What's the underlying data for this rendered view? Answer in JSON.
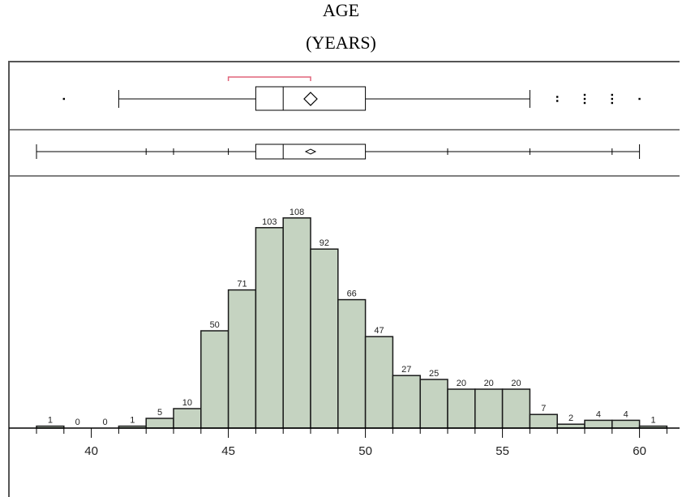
{
  "chart_data": {
    "type": "bar",
    "title": "AGE",
    "subtitle": "(YEARS)",
    "bins": [
      {
        "x0": 38,
        "x1": 39,
        "count": 1
      },
      {
        "x0": 39,
        "x1": 40,
        "count": 0
      },
      {
        "x0": 40,
        "x1": 41,
        "count": 0
      },
      {
        "x0": 41,
        "x1": 42,
        "count": 1
      },
      {
        "x0": 42,
        "x1": 43,
        "count": 5
      },
      {
        "x0": 43,
        "x1": 44,
        "count": 10
      },
      {
        "x0": 44,
        "x1": 45,
        "count": 50
      },
      {
        "x0": 45,
        "x1": 46,
        "count": 71
      },
      {
        "x0": 46,
        "x1": 47,
        "count": 103
      },
      {
        "x0": 47,
        "x1": 48,
        "count": 108
      },
      {
        "x0": 48,
        "x1": 49,
        "count": 92
      },
      {
        "x0": 49,
        "x1": 50,
        "count": 66
      },
      {
        "x0": 50,
        "x1": 51,
        "count": 47
      },
      {
        "x0": 51,
        "x1": 52,
        "count": 27
      },
      {
        "x0": 52,
        "x1": 53,
        "count": 25
      },
      {
        "x0": 53,
        "x1": 54,
        "count": 20
      },
      {
        "x0": 54,
        "x1": 55,
        "count": 20
      },
      {
        "x0": 55,
        "x1": 56,
        "count": 20
      },
      {
        "x0": 56,
        "x1": 57,
        "count": 7
      },
      {
        "x0": 57,
        "x1": 58,
        "count": 2
      },
      {
        "x0": 58,
        "x1": 59,
        "count": 4
      },
      {
        "x0": 59,
        "x1": 60,
        "count": 4
      },
      {
        "x0": 60,
        "x1": 61,
        "count": 1
      }
    ],
    "xticks": [
      "40",
      "45",
      "50",
      "55",
      "60"
    ],
    "xlim": [
      37.9,
      61.3
    ],
    "ylim": [
      0,
      115
    ],
    "boxplot_outlier": {
      "whisker_low": 41,
      "q1": 46,
      "median": 47,
      "mean": 48,
      "q3": 50,
      "whisker_high": 56,
      "shortest_half_low": 45,
      "shortest_half_high": 48,
      "outliers": [
        {
          "x": 39,
          "n": 1
        },
        {
          "x": 57,
          "n": 2
        },
        {
          "x": 58,
          "n": 3
        },
        {
          "x": 59,
          "n": 3
        },
        {
          "x": 60,
          "n": 1
        }
      ]
    },
    "boxplot_quantile": {
      "min": 38,
      "q1": 46,
      "median": 47,
      "mean": 48,
      "q3": 50,
      "max": 60,
      "quantile_ticks": [
        42,
        43,
        45,
        53,
        56,
        59
      ]
    },
    "colors": {
      "bar_fill": "#c5d3c1",
      "bar_stroke": "#1a1a1a",
      "shortest_half": "#e0647a",
      "frame": "#555555"
    },
    "grid": false
  }
}
